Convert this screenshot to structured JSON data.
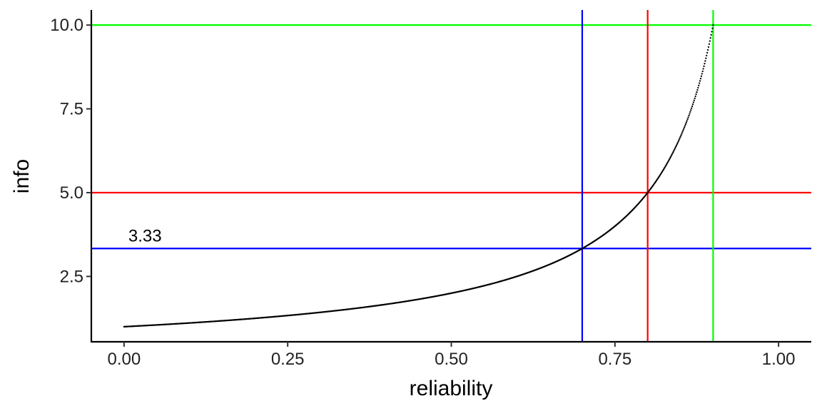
{
  "chart_data": {
    "type": "scatter",
    "title": "",
    "xlabel": "reliability",
    "ylabel": "info",
    "xlim": [
      -0.05,
      1.05
    ],
    "ylim": [
      0.55,
      10.45
    ],
    "x_ticks": [
      {
        "value": 0.0,
        "label": "0.00"
      },
      {
        "value": 0.25,
        "label": "0.25"
      },
      {
        "value": 0.5,
        "label": "0.50"
      },
      {
        "value": 0.75,
        "label": "0.75"
      },
      {
        "value": 1.0,
        "label": "1.00"
      }
    ],
    "y_ticks": [
      {
        "value": 2.5,
        "label": "2.5"
      },
      {
        "value": 5.0,
        "label": "5.0"
      },
      {
        "value": 7.5,
        "label": "7.5"
      },
      {
        "value": 10.0,
        "label": "10.0"
      }
    ],
    "grid": false,
    "series": [
      {
        "formula": "info = 1 / (1 - reliability)",
        "x_range": [
          0.0,
          0.9
        ],
        "step": 0.001,
        "color": "#000000",
        "marker": "point"
      }
    ],
    "reference_lines": [
      {
        "orientation": "horizontal",
        "value": 10.0,
        "color": "#00FF00"
      },
      {
        "orientation": "horizontal",
        "value": 5.0,
        "color": "#FF0000"
      },
      {
        "orientation": "horizontal",
        "value": 3.333,
        "color": "#0000FF"
      },
      {
        "orientation": "vertical",
        "value": 0.7,
        "color": "#0000FF"
      },
      {
        "orientation": "vertical",
        "value": 0.8,
        "color": "#FF0000"
      },
      {
        "orientation": "vertical",
        "value": 0.9,
        "color": "#00FF00"
      }
    ],
    "annotations": [
      {
        "text": "3.33",
        "x": 0.0,
        "y": 3.333
      }
    ]
  }
}
